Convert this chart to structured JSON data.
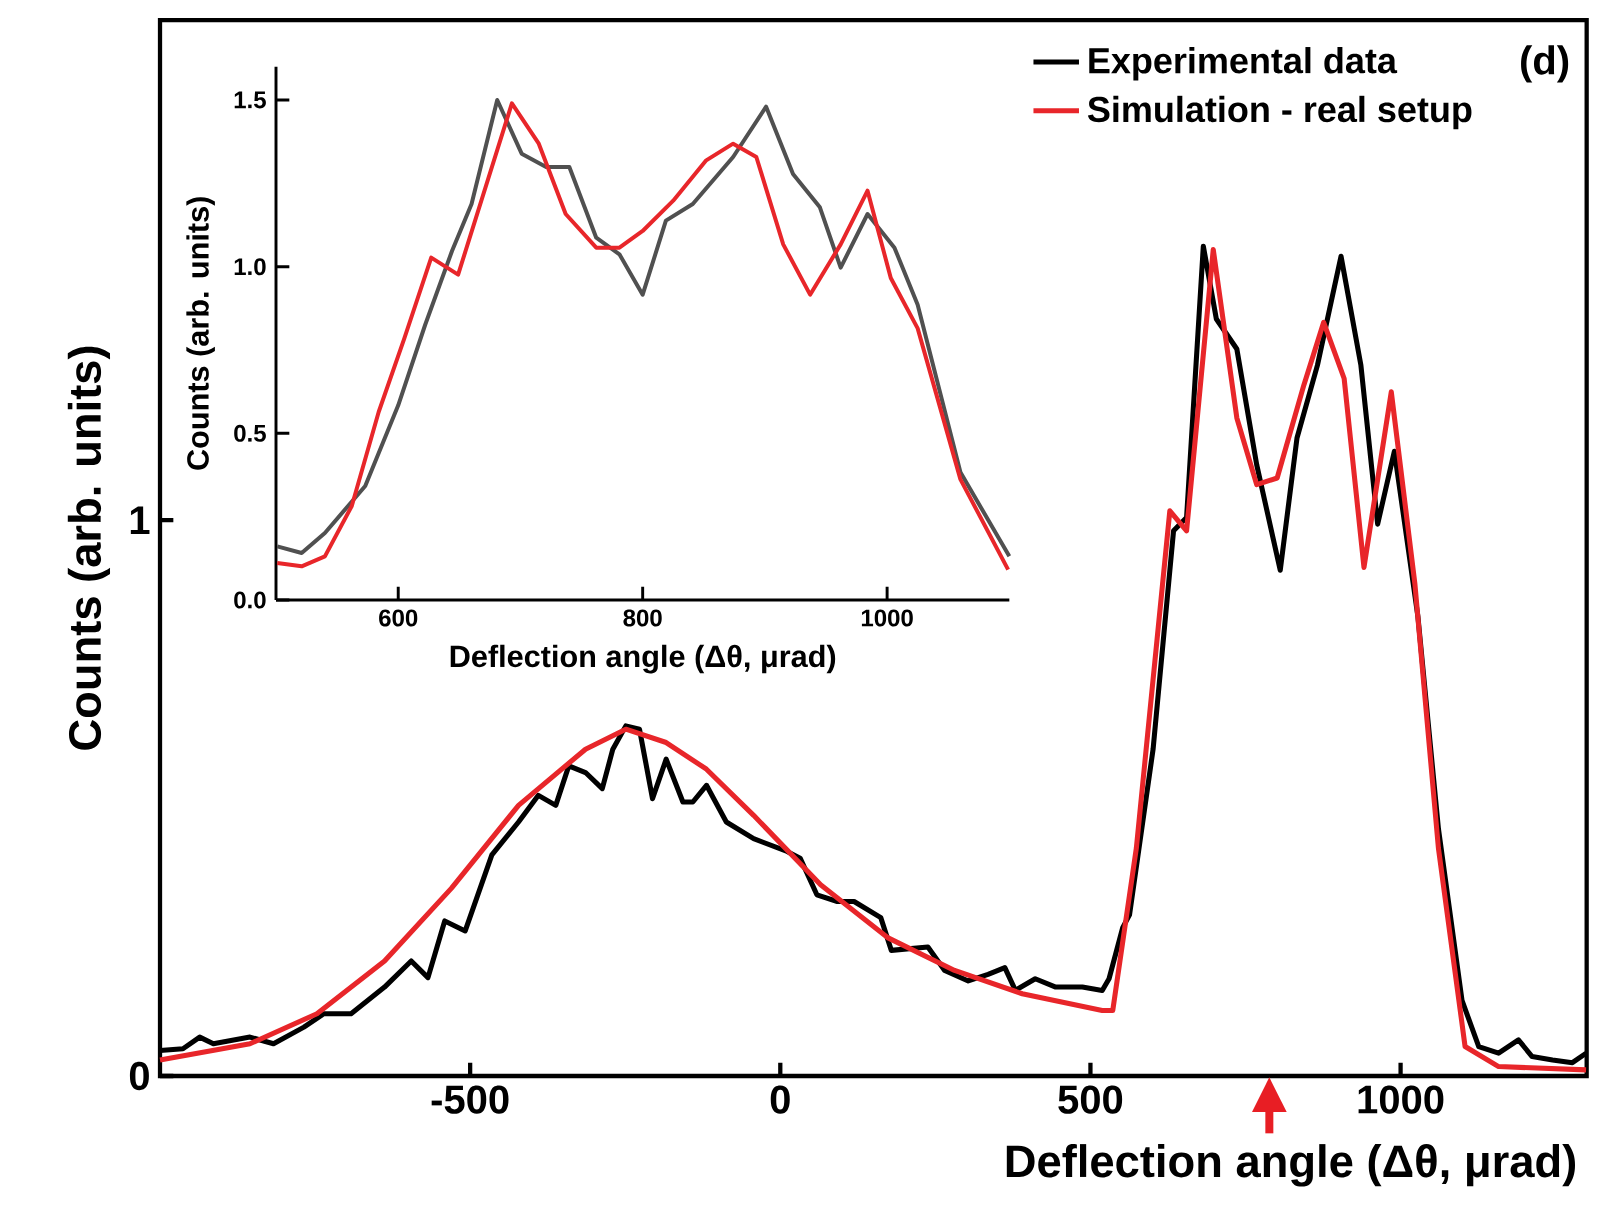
{
  "chart_data": [
    {
      "type": "line",
      "xlabel": "Deflection angle (Δθ, μrad)",
      "ylabel": "Counts (arb. units)",
      "xlim": [
        -1000,
        1300
      ],
      "ylim": [
        0,
        1.9
      ],
      "xticks": [
        -500,
        0,
        500,
        1000
      ],
      "yticks": [
        0,
        1
      ],
      "legend": "top right",
      "annotations": [
        "(d)"
      ],
      "series": [
        {
          "name": "Experimental data",
          "color": "#000000",
          "x": [
            -1000,
            -963,
            -936,
            -914,
            -855,
            -817,
            -768,
            -736,
            -692,
            -638,
            -595,
            -568,
            -541,
            -508,
            -465,
            -422,
            -390,
            -362,
            -341,
            -314,
            -287,
            -270,
            -249,
            -227,
            -206,
            -184,
            -157,
            -141,
            -119,
            -87,
            -43,
            11,
            32,
            59,
            92,
            119,
            162,
            179,
            238,
            265,
            303,
            335,
            362,
            379,
            411,
            444,
            487,
            519,
            530,
            552,
            563,
            601,
            634,
            655,
            682,
            703,
            736,
            768,
            806,
            833,
            866,
            904,
            936,
            963,
            990,
            1028,
            1061,
            1099,
            1126,
            1158,
            1190,
            1212,
            1245,
            1277,
            1299
          ],
          "values": [
            0.046,
            0.049,
            0.07,
            0.058,
            0.07,
            0.058,
            0.088,
            0.112,
            0.112,
            0.16,
            0.207,
            0.177,
            0.279,
            0.261,
            0.398,
            0.457,
            0.505,
            0.487,
            0.558,
            0.546,
            0.517,
            0.588,
            0.63,
            0.624,
            0.499,
            0.57,
            0.493,
            0.493,
            0.523,
            0.457,
            0.427,
            0.404,
            0.392,
            0.326,
            0.314,
            0.314,
            0.285,
            0.226,
            0.232,
            0.19,
            0.171,
            0.183,
            0.195,
            0.154,
            0.175,
            0.16,
            0.16,
            0.154,
            0.175,
            0.267,
            0.29,
            0.588,
            0.981,
            1.005,
            1.493,
            1.362,
            1.308,
            1.1,
            0.91,
            1.148,
            1.279,
            1.475,
            1.279,
            0.993,
            1.124,
            0.826,
            0.445,
            0.136,
            0.053,
            0.041,
            0.065,
            0.035,
            0.029,
            0.024,
            0.041
          ]
        },
        {
          "name": "Simulation - real setup",
          "color": "#e8262a",
          "x": [
            -1000,
            -855,
            -747,
            -638,
            -530,
            -422,
            -314,
            -249,
            -184,
            -119,
            -43,
            65,
            173,
            281,
            390,
            519,
            536,
            574,
            628,
            655,
            698,
            736,
            768,
            801,
            844,
            876,
            909,
            941,
            985,
            1023,
            1061,
            1104,
            1158,
            1299
          ],
          "values": [
            0.029,
            0.058,
            0.112,
            0.207,
            0.338,
            0.487,
            0.588,
            0.624,
            0.6,
            0.552,
            0.469,
            0.344,
            0.249,
            0.19,
            0.148,
            0.118,
            0.118,
            0.41,
            1.017,
            0.981,
            1.487,
            1.184,
            1.064,
            1.076,
            1.243,
            1.356,
            1.255,
            0.915,
            1.231,
            0.886,
            0.41,
            0.053,
            0.017,
            0.011
          ]
        }
      ]
    },
    {
      "type": "line",
      "xlabel": "Deflection angle (Δθ, μrad)",
      "ylabel": "Counts (arb. units)",
      "xlim": [
        500,
        1100
      ],
      "ylim": [
        0,
        1.6
      ],
      "xticks": [
        600,
        800,
        1000
      ],
      "yticks": [
        {
          "value": 0,
          "label": "0.0"
        },
        {
          "value": 0.5,
          "label": "0.5"
        },
        {
          "value": 1,
          "label": "1.0"
        },
        {
          "value": 1.5,
          "label": "1.5"
        }
      ],
      "series": [
        {
          "color": "#505050",
          "x": [
            501,
            521,
            540,
            573,
            600,
            622,
            644,
            660,
            681,
            701,
            721,
            740,
            762,
            781,
            800,
            819,
            841,
            874,
            901,
            923,
            945,
            962,
            984,
            1006,
            1025,
            1060,
            1100
          ],
          "values": [
            0.161,
            0.141,
            0.201,
            0.342,
            0.584,
            0.825,
            1.047,
            1.188,
            1.5,
            1.339,
            1.299,
            1.299,
            1.087,
            1.037,
            0.916,
            1.138,
            1.188,
            1.329,
            1.48,
            1.278,
            1.178,
            0.997,
            1.158,
            1.057,
            0.886,
            0.383,
            0.131
          ]
        },
        {
          "color": "#e8262a",
          "x": [
            501,
            521,
            540,
            562,
            584,
            605,
            627,
            649,
            693,
            715,
            737,
            762,
            781,
            800,
            825,
            852,
            874,
            893,
            915,
            937,
            962,
            984,
            1003,
            1025,
            1060,
            1099
          ],
          "values": [
            0.111,
            0.101,
            0.131,
            0.282,
            0.564,
            0.785,
            1.027,
            0.976,
            1.49,
            1.369,
            1.158,
            1.057,
            1.057,
            1.107,
            1.198,
            1.319,
            1.369,
            1.329,
            1.067,
            0.916,
            1.067,
            1.228,
            0.966,
            0.815,
            0.362,
            0.091
          ]
        }
      ]
    }
  ]
}
